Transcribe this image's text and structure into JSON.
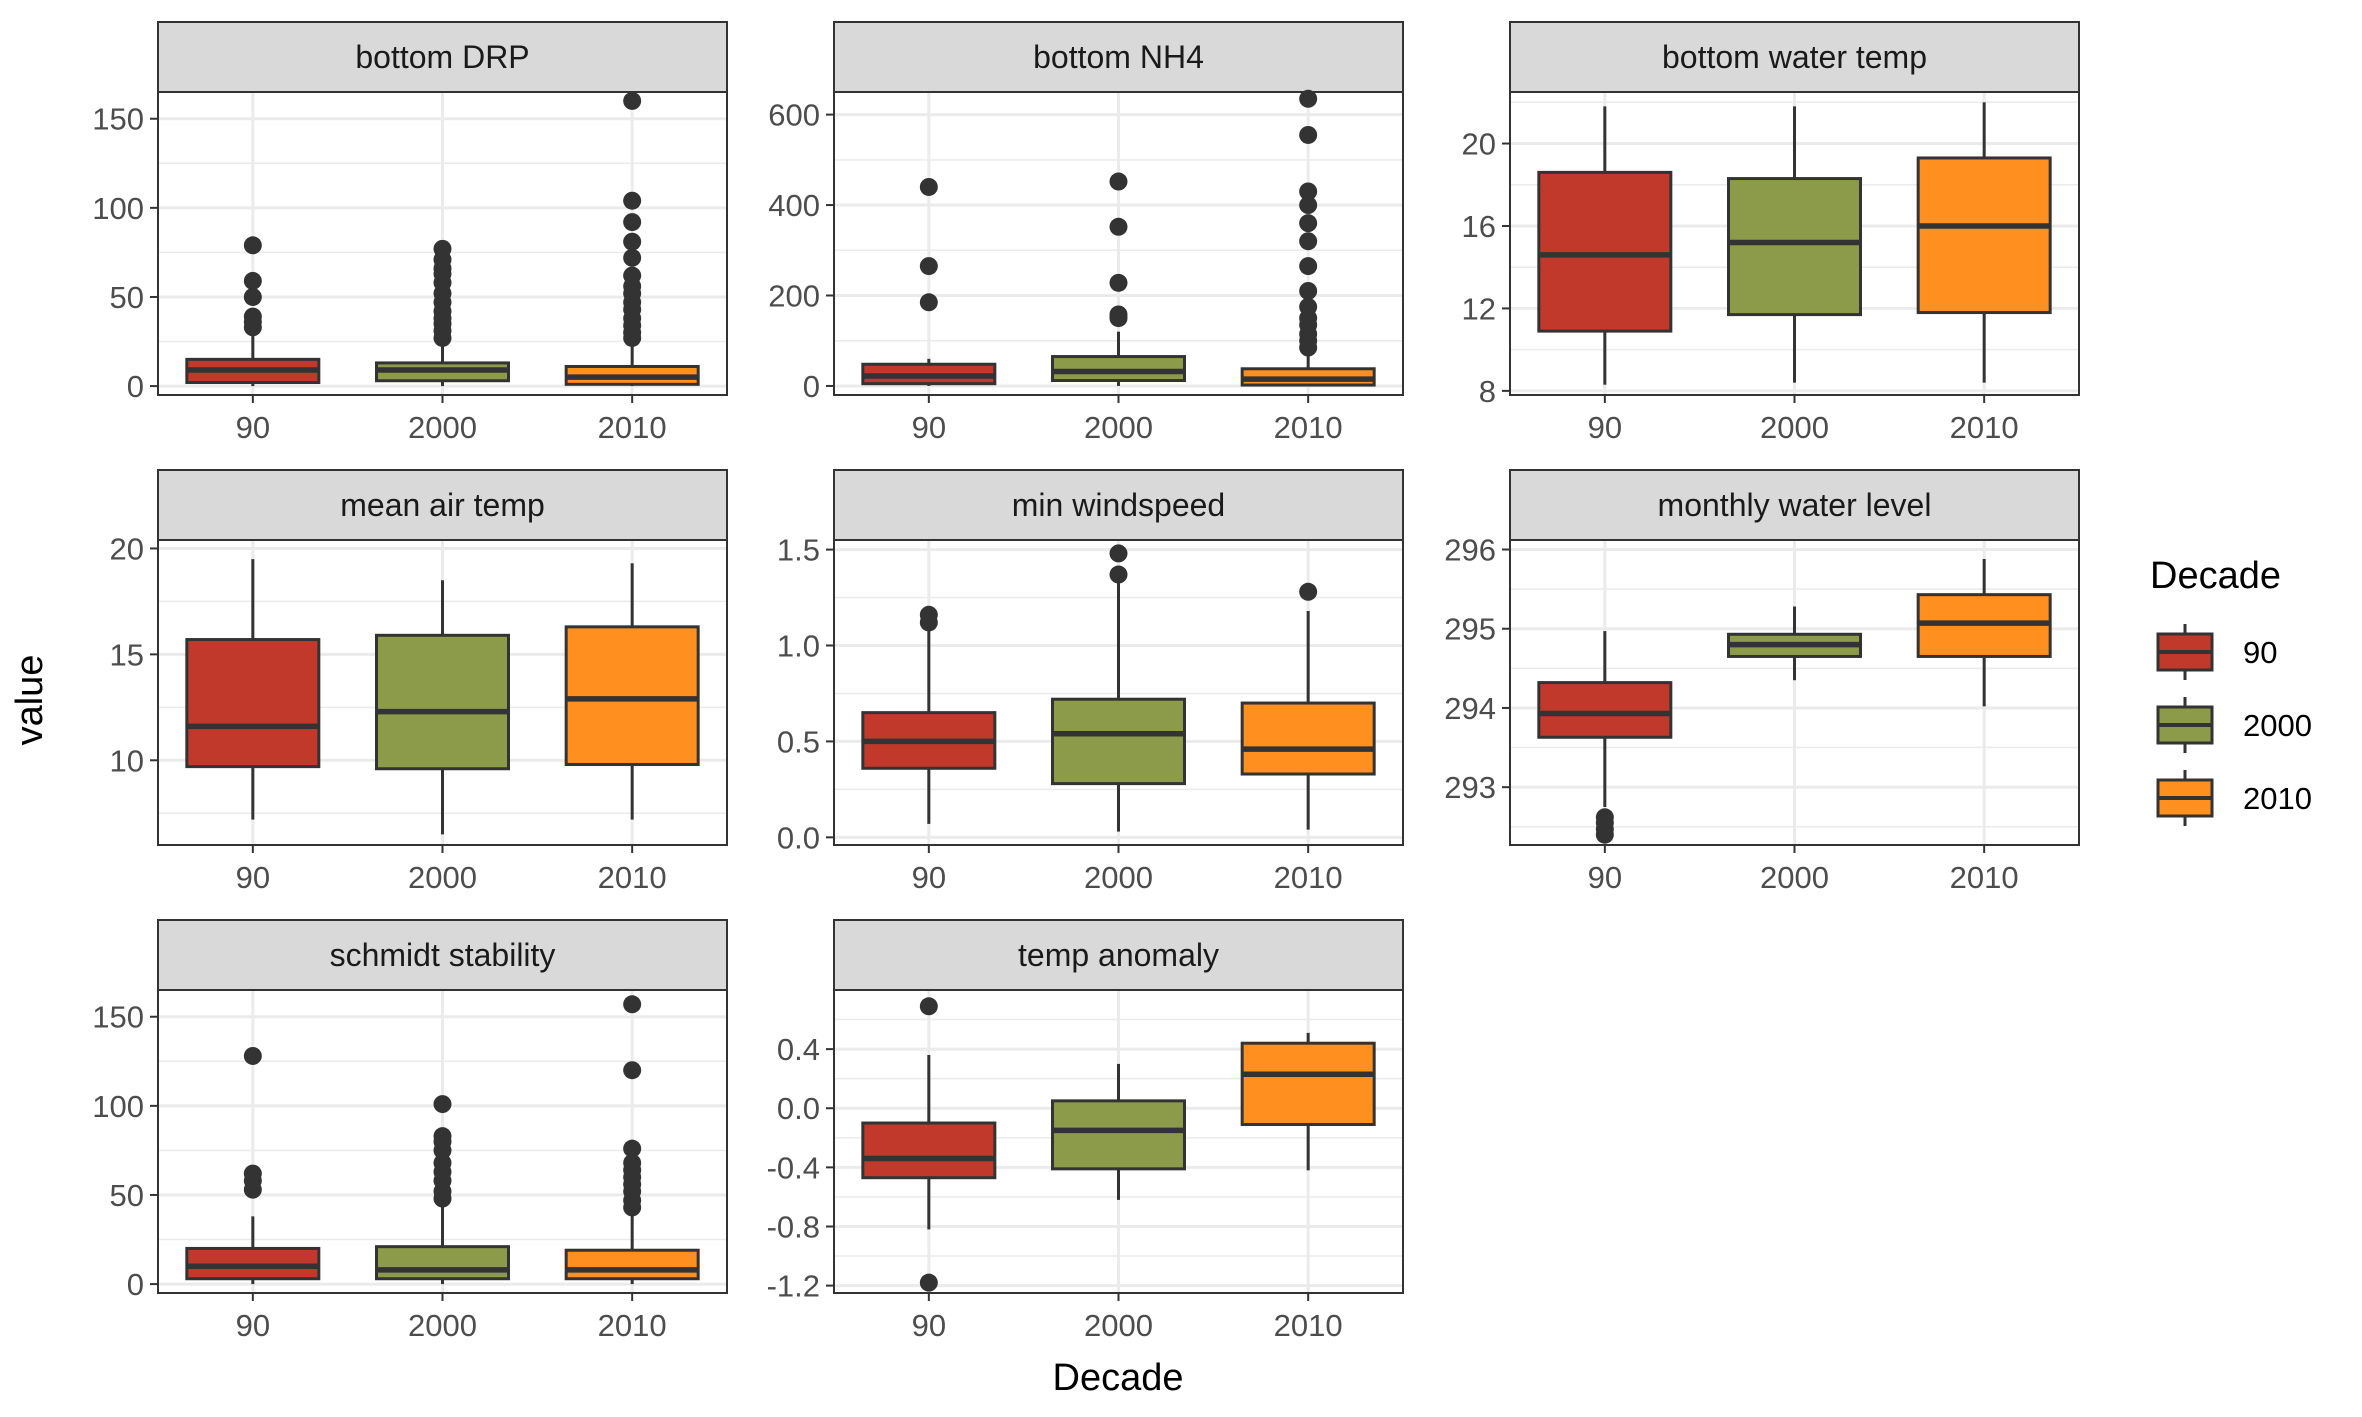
{
  "figure": {
    "xlabel": "Decade",
    "ylabel": "value",
    "legend_title": "Decade",
    "legend_position": "right"
  },
  "colors": {
    "90": "#C0392B",
    "2000": "#8C9B4A",
    "2010": "#FF9020",
    "box_outline": "#333333",
    "strip_fill": "#D9D9D9",
    "grid": "#EBEBEB"
  },
  "chart_data": [
    {
      "type": "box",
      "title": "bottom DRP",
      "categories": [
        "90",
        "2000",
        "2010"
      ],
      "ylim": [
        -5,
        165
      ],
      "yticks": [
        0,
        50,
        100,
        150
      ],
      "boxes": [
        {
          "category": "90",
          "whisker_low": 0,
          "q1": 2,
          "median": 9,
          "q3": 15,
          "whisker_high": 30,
          "outliers": [
            33,
            36,
            39,
            50,
            59,
            79
          ]
        },
        {
          "category": "2000",
          "whisker_low": 0,
          "q1": 3,
          "median": 9,
          "q3": 13,
          "whisker_high": 25,
          "outliers": [
            27,
            31,
            35,
            38,
            42,
            47,
            52,
            58,
            63,
            66,
            71,
            77
          ]
        },
        {
          "category": "2010",
          "whisker_low": 0,
          "q1": 1,
          "median": 5,
          "q3": 11,
          "whisker_high": 24,
          "outliers": [
            27,
            30,
            34,
            38,
            43,
            47,
            52,
            56,
            62,
            72,
            81,
            92,
            104,
            160
          ]
        }
      ]
    },
    {
      "type": "box",
      "title": "bottom NH4",
      "categories": [
        "90",
        "2000",
        "2010"
      ],
      "ylim": [
        -20,
        650
      ],
      "yticks": [
        0,
        200,
        400,
        600
      ],
      "boxes": [
        {
          "category": "90",
          "whisker_low": 0,
          "q1": 5,
          "median": 22,
          "q3": 48,
          "whisker_high": 60,
          "outliers": [
            185,
            265,
            440
          ]
        },
        {
          "category": "2000",
          "whisker_low": 0,
          "q1": 12,
          "median": 32,
          "q3": 65,
          "whisker_high": 120,
          "outliers": [
            150,
            158,
            228,
            352,
            452
          ]
        },
        {
          "category": "2010",
          "whisker_low": 0,
          "q1": 2,
          "median": 15,
          "q3": 38,
          "whisker_high": 75,
          "outliers": [
            85,
            100,
            115,
            135,
            150,
            175,
            210,
            265,
            320,
            360,
            400,
            430,
            555,
            635
          ]
        }
      ]
    },
    {
      "type": "box",
      "title": "bottom water temp",
      "categories": [
        "90",
        "2000",
        "2010"
      ],
      "ylim": [
        7.8,
        22.5
      ],
      "yticks": [
        8,
        12,
        16,
        20
      ],
      "boxes": [
        {
          "category": "90",
          "whisker_low": 8.3,
          "q1": 10.9,
          "median": 14.6,
          "q3": 18.6,
          "whisker_high": 21.8,
          "outliers": []
        },
        {
          "category": "2000",
          "whisker_low": 8.4,
          "q1": 11.7,
          "median": 15.2,
          "q3": 18.3,
          "whisker_high": 21.8,
          "outliers": []
        },
        {
          "category": "2010",
          "whisker_low": 8.4,
          "q1": 11.8,
          "median": 16.0,
          "q3": 19.3,
          "whisker_high": 22.0,
          "outliers": []
        }
      ]
    },
    {
      "type": "box",
      "title": "mean air temp",
      "categories": [
        "90",
        "2000",
        "2010"
      ],
      "ylim": [
        6.0,
        20.4
      ],
      "yticks": [
        10,
        15,
        20
      ],
      "boxes": [
        {
          "category": "90",
          "whisker_low": 7.2,
          "q1": 9.7,
          "median": 11.6,
          "q3": 15.7,
          "whisker_high": 19.5,
          "outliers": []
        },
        {
          "category": "2000",
          "whisker_low": 6.5,
          "q1": 9.6,
          "median": 12.3,
          "q3": 15.9,
          "whisker_high": 18.5,
          "outliers": []
        },
        {
          "category": "2010",
          "whisker_low": 7.2,
          "q1": 9.8,
          "median": 12.9,
          "q3": 16.3,
          "whisker_high": 19.3,
          "outliers": []
        }
      ]
    },
    {
      "type": "box",
      "title": "min windspeed",
      "categories": [
        "90",
        "2000",
        "2010"
      ],
      "ylim": [
        -0.04,
        1.55
      ],
      "yticks": [
        0.0,
        0.5,
        1.0,
        1.5
      ],
      "yticklabels": [
        "0.0",
        "0.5",
        "1.0",
        "1.5"
      ],
      "boxes": [
        {
          "category": "90",
          "whisker_low": 0.07,
          "q1": 0.36,
          "median": 0.5,
          "q3": 0.65,
          "whisker_high": 1.1,
          "outliers": [
            1.12,
            1.16
          ]
        },
        {
          "category": "2000",
          "whisker_low": 0.03,
          "q1": 0.28,
          "median": 0.54,
          "q3": 0.72,
          "whisker_high": 1.35,
          "outliers": [
            1.37,
            1.48
          ]
        },
        {
          "category": "2010",
          "whisker_low": 0.04,
          "q1": 0.33,
          "median": 0.46,
          "q3": 0.7,
          "whisker_high": 1.18,
          "outliers": [
            1.28
          ]
        }
      ]
    },
    {
      "type": "box",
      "title": "monthly water level",
      "categories": [
        "90",
        "2000",
        "2010"
      ],
      "ylim": [
        292.27,
        296.12
      ],
      "yticks": [
        293,
        294,
        295,
        296
      ],
      "boxes": [
        {
          "category": "90",
          "whisker_low": 292.75,
          "q1": 293.63,
          "median": 293.93,
          "q3": 294.32,
          "whisker_high": 294.97,
          "outliers": [
            292.4,
            292.47,
            292.55,
            292.62
          ]
        },
        {
          "category": "2000",
          "whisker_low": 294.35,
          "q1": 294.65,
          "median": 294.8,
          "q3": 294.93,
          "whisker_high": 295.28,
          "outliers": []
        },
        {
          "category": "2010",
          "whisker_low": 294.02,
          "q1": 294.65,
          "median": 295.07,
          "q3": 295.43,
          "whisker_high": 295.88,
          "outliers": []
        }
      ]
    },
    {
      "type": "box",
      "title": "schmidt stability",
      "categories": [
        "90",
        "2000",
        "2010"
      ],
      "ylim": [
        -5,
        165
      ],
      "yticks": [
        0,
        50,
        100,
        150
      ],
      "boxes": [
        {
          "category": "90",
          "whisker_low": 0,
          "q1": 3,
          "median": 10,
          "q3": 20,
          "whisker_high": 38,
          "outliers": [
            53,
            58,
            62,
            128
          ]
        },
        {
          "category": "2000",
          "whisker_low": 0,
          "q1": 3,
          "median": 8,
          "q3": 21,
          "whisker_high": 45,
          "outliers": [
            48,
            52,
            58,
            63,
            68,
            75,
            80,
            83,
            101
          ]
        },
        {
          "category": "2010",
          "whisker_low": 0,
          "q1": 3,
          "median": 8,
          "q3": 19,
          "whisker_high": 40,
          "outliers": [
            43,
            47,
            52,
            56,
            60,
            64,
            68,
            76,
            120,
            157
          ]
        }
      ]
    },
    {
      "type": "box",
      "title": "temp anomaly",
      "categories": [
        "90",
        "2000",
        "2010"
      ],
      "ylim": [
        -1.25,
        0.8
      ],
      "yticks": [
        -1.2,
        -0.8,
        -0.4,
        0.0,
        0.4
      ],
      "yticklabels": [
        "-1.2",
        "-0.8",
        "-0.4",
        "0.0",
        "0.4"
      ],
      "boxes": [
        {
          "category": "90",
          "whisker_low": -0.82,
          "q1": -0.47,
          "median": -0.34,
          "q3": -0.1,
          "whisker_high": 0.36,
          "outliers": [
            -1.18,
            0.69
          ]
        },
        {
          "category": "2000",
          "whisker_low": -0.62,
          "q1": -0.41,
          "median": -0.15,
          "q3": 0.05,
          "whisker_high": 0.3,
          "outliers": []
        },
        {
          "category": "2010",
          "whisker_low": -0.42,
          "q1": -0.11,
          "median": 0.23,
          "q3": 0.44,
          "whisker_high": 0.51,
          "outliers": []
        }
      ]
    }
  ]
}
